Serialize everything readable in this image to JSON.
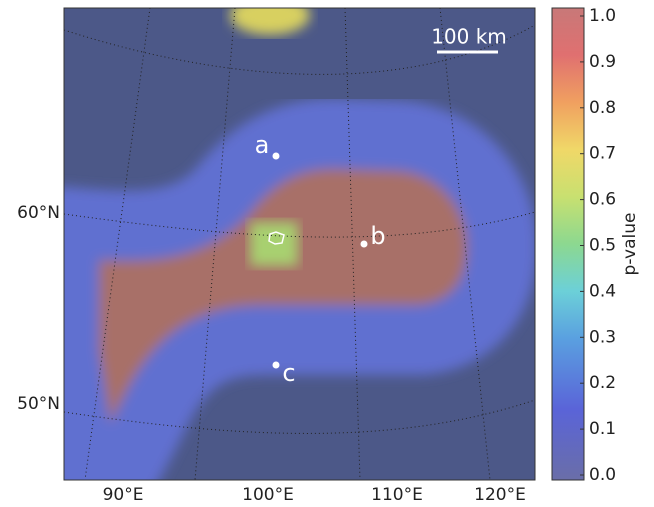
{
  "map": {
    "x_labels": [
      "90°E",
      "100°E",
      "110°E",
      "120°E"
    ],
    "y_labels": [
      "60°N",
      "50°N"
    ],
    "points": [
      {
        "label": "a"
      },
      {
        "label": "b"
      },
      {
        "label": "c"
      }
    ],
    "scale_bar": "100 km",
    "colorbar": {
      "label": "p-value",
      "lim": [
        0,
        1
      ],
      "ticks": [
        {
          "value": 0,
          "label": "0.0"
        },
        {
          "value": 0.1,
          "label": "0.1"
        },
        {
          "value": 0.2,
          "label": "0.2"
        },
        {
          "value": 0.3,
          "label": "0.3"
        },
        {
          "value": 0.4,
          "label": "0.4"
        },
        {
          "value": 0.5,
          "label": "0.5"
        },
        {
          "value": 0.6,
          "label": "0.6"
        },
        {
          "value": 0.7,
          "label": "0.7"
        },
        {
          "value": 0.8,
          "label": "0.8"
        },
        {
          "value": 0.9,
          "label": "0.9"
        },
        {
          "value": 1,
          "label": "1.0"
        }
      ]
    }
  }
}
